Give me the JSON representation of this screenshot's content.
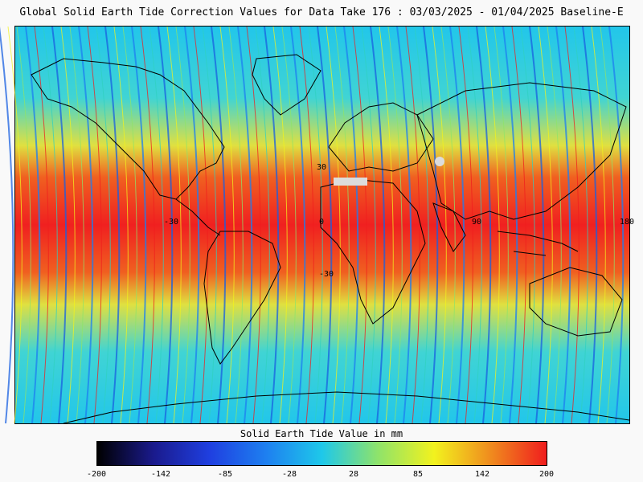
{
  "title": "Global Solid Earth Tide Correction Values for Data Take 176 : 03/03/2025 - 01/04/2025 Baseline-E",
  "map": {
    "grid_labels": [
      "30",
      "-30",
      "0",
      "-30",
      "90",
      "180"
    ]
  },
  "legend": {
    "title": "Solid Earth Tide Value in mm",
    "ticks": [
      "-200",
      "-142",
      "-85",
      "-28",
      "28",
      "85",
      "142",
      "200"
    ],
    "colormap": [
      "#000000",
      "#1a1a8c",
      "#1f3fe0",
      "#1e7ff0",
      "#1ec8ea",
      "#8fe36a",
      "#f2f21e",
      "#f08c1e",
      "#f01e1e"
    ]
  }
}
